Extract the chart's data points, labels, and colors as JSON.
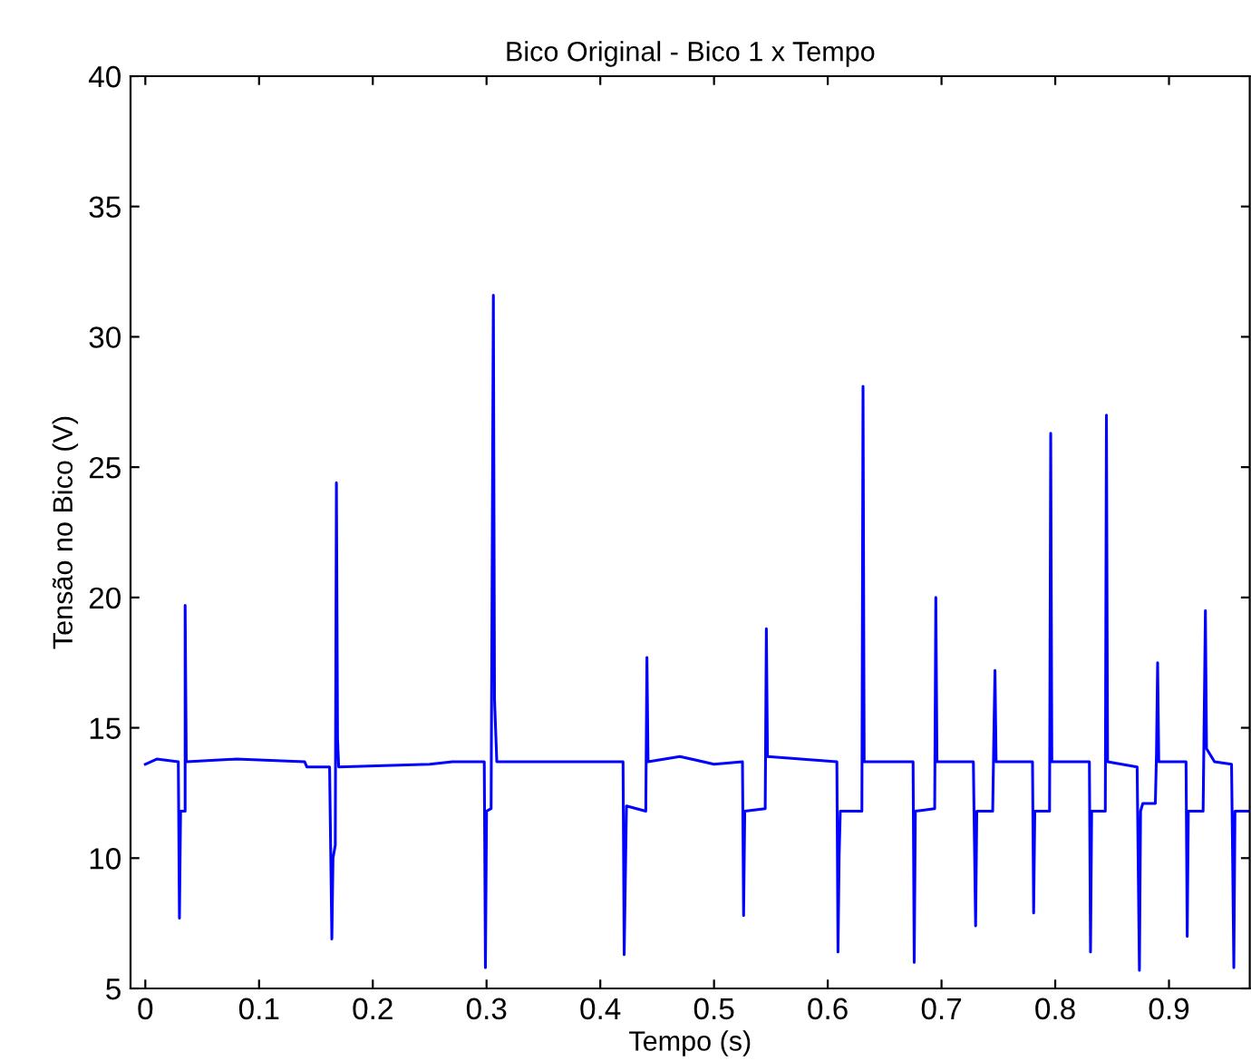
{
  "chart_data": {
    "type": "line",
    "title": "Bico Original - Bico 1 x Tempo",
    "xlabel": "Tempo (s)",
    "ylabel": "Tensão no Bico (V)",
    "xlim": [
      -0.013,
      0.971
    ],
    "ylim": [
      5,
      40
    ],
    "xticks": [
      0,
      0.1,
      0.2,
      0.3,
      0.4,
      0.5,
      0.6,
      0.7,
      0.8,
      0.9
    ],
    "yticks": [
      5,
      10,
      15,
      20,
      25,
      30,
      35,
      40
    ],
    "grid": false,
    "legend": false,
    "series": [
      {
        "color": "#0000ff",
        "x": [
          0,
          0.01,
          0.029,
          0.03,
          0.031,
          0.035,
          0.035,
          0.036,
          0.08,
          0.14,
          0.142,
          0.162,
          0.163,
          0.164,
          0.165,
          0.167,
          0.168,
          0.169,
          0.17,
          0.25,
          0.27,
          0.298,
          0.299,
          0.3,
          0.304,
          0.305,
          0.306,
          0.307,
          0.309,
          0.42,
          0.421,
          0.423,
          0.44,
          0.441,
          0.442,
          0.47,
          0.5,
          0.525,
          0.526,
          0.527,
          0.545,
          0.546,
          0.547,
          0.608,
          0.609,
          0.61,
          0.611,
          0.63,
          0.631,
          0.632,
          0.675,
          0.676,
          0.677,
          0.694,
          0.695,
          0.696,
          0.728,
          0.729,
          0.73,
          0.731,
          0.745,
          0.746,
          0.747,
          0.748,
          0.78,
          0.781,
          0.782,
          0.795,
          0.796,
          0.797,
          0.83,
          0.831,
          0.832,
          0.844,
          0.845,
          0.846,
          0.872,
          0.873,
          0.874,
          0.875,
          0.877,
          0.888,
          0.889,
          0.89,
          0.891,
          0.915,
          0.916,
          0.917,
          0.93,
          0.931,
          0.932,
          0.933,
          0.94,
          0.955,
          0.956,
          0.957,
          0.958,
          0.97
        ],
        "values": [
          13.6,
          13.8,
          13.7,
          7.7,
          11.8,
          11.8,
          19.7,
          13.7,
          13.8,
          13.7,
          13.5,
          13.5,
          10.2,
          6.9,
          10.0,
          10.5,
          24.4,
          14.6,
          13.5,
          13.6,
          13.7,
          13.7,
          5.8,
          11.8,
          11.9,
          21.7,
          31.6,
          16.1,
          13.7,
          13.7,
          6.3,
          12.0,
          11.8,
          17.7,
          13.7,
          13.9,
          13.6,
          13.7,
          7.8,
          11.8,
          11.9,
          18.8,
          13.9,
          13.7,
          6.4,
          10.1,
          11.8,
          11.8,
          28.1,
          13.7,
          13.7,
          6.0,
          11.8,
          11.9,
          20.0,
          13.7,
          13.7,
          10.5,
          7.4,
          11.8,
          11.8,
          14.6,
          17.2,
          13.7,
          13.7,
          7.9,
          11.8,
          11.8,
          26.3,
          13.7,
          13.7,
          6.4,
          11.8,
          11.8,
          27.0,
          13.7,
          13.5,
          9.5,
          5.7,
          11.8,
          12.1,
          12.1,
          14.0,
          17.5,
          13.7,
          13.7,
          7.0,
          11.8,
          11.8,
          15.6,
          19.5,
          14.2,
          13.7,
          13.6,
          9.8,
          5.8,
          11.8,
          11.8
        ]
      }
    ]
  }
}
